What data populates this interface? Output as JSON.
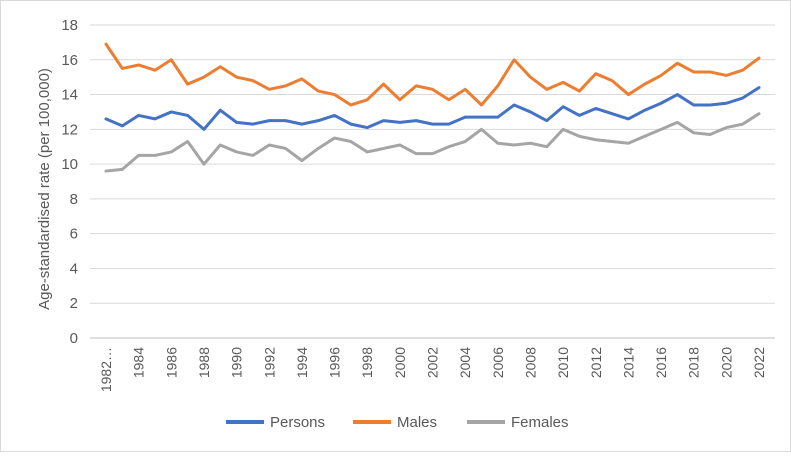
{
  "chart_data": {
    "type": "line",
    "title": "",
    "xlabel": "",
    "ylabel": "Age-standardised rate (per 100,000)",
    "ylim": [
      0,
      18
    ],
    "yticks": [
      0,
      2,
      4,
      6,
      8,
      10,
      12,
      14,
      16,
      18
    ],
    "grid": true,
    "legend_position": "bottom",
    "x": [
      1982,
      1983,
      1984,
      1985,
      1986,
      1987,
      1988,
      1989,
      1990,
      1991,
      1992,
      1993,
      1994,
      1995,
      1996,
      1997,
      1998,
      1999,
      2000,
      2001,
      2002,
      2003,
      2004,
      2005,
      2006,
      2007,
      2008,
      2009,
      2010,
      2011,
      2012,
      2013,
      2014,
      2015,
      2016,
      2017,
      2018,
      2019,
      2020,
      2021,
      2022
    ],
    "xtick_labels": [
      {
        "x": 1982,
        "label": "1982…"
      },
      {
        "x": 1984,
        "label": "1984"
      },
      {
        "x": 1986,
        "label": "1986"
      },
      {
        "x": 1988,
        "label": "1988"
      },
      {
        "x": 1990,
        "label": "1990"
      },
      {
        "x": 1992,
        "label": "1992"
      },
      {
        "x": 1994,
        "label": "1994"
      },
      {
        "x": 1996,
        "label": "1996"
      },
      {
        "x": 1998,
        "label": "1998"
      },
      {
        "x": 2000,
        "label": "2000"
      },
      {
        "x": 2002,
        "label": "2002"
      },
      {
        "x": 2004,
        "label": "2004"
      },
      {
        "x": 2006,
        "label": "2006"
      },
      {
        "x": 2008,
        "label": "2008"
      },
      {
        "x": 2010,
        "label": "2010"
      },
      {
        "x": 2012,
        "label": "2012"
      },
      {
        "x": 2014,
        "label": "2014"
      },
      {
        "x": 2016,
        "label": "2016"
      },
      {
        "x": 2018,
        "label": "2018"
      },
      {
        "x": 2020,
        "label": "2020"
      },
      {
        "x": 2022,
        "label": "2022"
      }
    ],
    "series": [
      {
        "name": "Persons",
        "color": "#4472c4",
        "values": [
          12.6,
          12.2,
          12.8,
          12.6,
          13.0,
          12.8,
          12.0,
          13.1,
          12.4,
          12.3,
          12.5,
          12.5,
          12.3,
          12.5,
          12.8,
          12.3,
          12.1,
          12.5,
          12.4,
          12.5,
          12.3,
          12.3,
          12.7,
          12.7,
          12.7,
          13.4,
          13.0,
          12.5,
          13.3,
          12.8,
          13.2,
          12.9,
          12.6,
          13.1,
          13.5,
          14.0,
          13.4,
          13.4,
          13.5,
          13.8,
          14.4
        ]
      },
      {
        "name": "Males",
        "color": "#ed7d31",
        "values": [
          16.9,
          15.5,
          15.7,
          15.4,
          16.0,
          14.6,
          15.0,
          15.6,
          15.0,
          14.8,
          14.3,
          14.5,
          14.9,
          14.2,
          14.0,
          13.4,
          13.7,
          14.6,
          13.7,
          14.5,
          14.3,
          13.7,
          14.3,
          13.4,
          14.5,
          16.0,
          15.0,
          14.3,
          14.7,
          14.2,
          15.2,
          14.8,
          14.0,
          14.6,
          15.1,
          15.8,
          15.3,
          15.3,
          15.1,
          15.4,
          16.1
        ]
      },
      {
        "name": "Females",
        "color": "#a5a5a5",
        "values": [
          9.6,
          9.7,
          10.5,
          10.5,
          10.7,
          11.3,
          10.0,
          11.1,
          10.7,
          10.5,
          11.1,
          10.9,
          10.2,
          10.9,
          11.5,
          11.3,
          10.7,
          10.9,
          11.1,
          10.6,
          10.6,
          11.0,
          11.3,
          12.0,
          11.2,
          11.1,
          11.2,
          11.0,
          12.0,
          11.6,
          11.4,
          11.3,
          11.2,
          11.6,
          12.0,
          12.4,
          11.8,
          11.7,
          12.1,
          12.3,
          12.9
        ]
      }
    ]
  }
}
